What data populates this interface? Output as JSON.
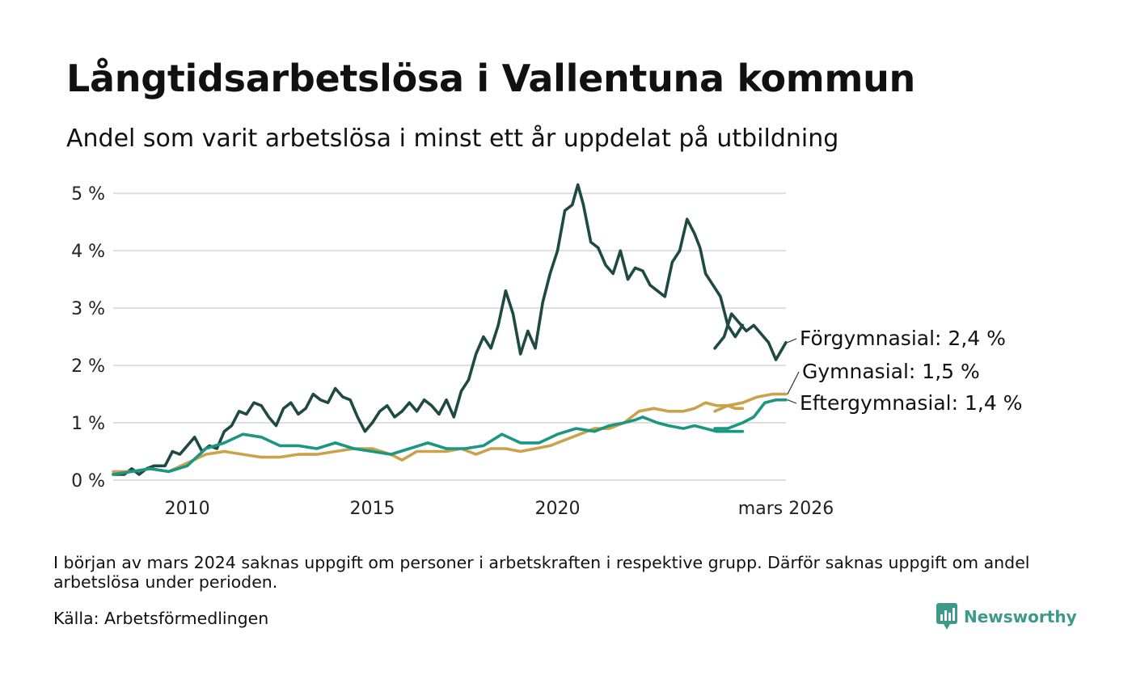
{
  "chart_data": {
    "type": "line",
    "title": "Långtidsarbetslösa i Vallentuna kommun",
    "subtitle": "Andel som varit arbetslösa i minst ett år uppdelat på utbildning",
    "xlabel": "",
    "ylabel": "",
    "ylim": [
      0,
      5.2
    ],
    "y_ticks": [
      0,
      1,
      2,
      3,
      4,
      5
    ],
    "y_tick_labels": [
      "0 %",
      "1 %",
      "2 %",
      "3 %",
      "4 %",
      "5 %"
    ],
    "x_range": [
      2008.0,
      2026.17
    ],
    "x_ticks": [
      2010,
      2015,
      2020,
      2026.17
    ],
    "x_tick_labels": [
      "2010",
      "2015",
      "2020",
      "mars 2026"
    ],
    "grid": true,
    "gap": [
      2023.7,
      2024.25
    ],
    "series": [
      {
        "name": "Förgymnasial",
        "end_label": "Förgymnasial: 2,4 %",
        "color": "#1f4a40",
        "points": [
          [
            2008.0,
            0.1
          ],
          [
            2008.3,
            0.1
          ],
          [
            2008.5,
            0.2
          ],
          [
            2008.7,
            0.1
          ],
          [
            2008.9,
            0.2
          ],
          [
            2009.1,
            0.25
          ],
          [
            2009.4,
            0.25
          ],
          [
            2009.6,
            0.5
          ],
          [
            2009.8,
            0.45
          ],
          [
            2010.0,
            0.6
          ],
          [
            2010.2,
            0.75
          ],
          [
            2010.4,
            0.5
          ],
          [
            2010.6,
            0.6
          ],
          [
            2010.8,
            0.55
          ],
          [
            2011.0,
            0.85
          ],
          [
            2011.2,
            0.95
          ],
          [
            2011.4,
            1.2
          ],
          [
            2011.6,
            1.15
          ],
          [
            2011.8,
            1.35
          ],
          [
            2012.0,
            1.3
          ],
          [
            2012.2,
            1.1
          ],
          [
            2012.4,
            0.95
          ],
          [
            2012.6,
            1.25
          ],
          [
            2012.8,
            1.35
          ],
          [
            2013.0,
            1.15
          ],
          [
            2013.2,
            1.25
          ],
          [
            2013.4,
            1.5
          ],
          [
            2013.6,
            1.4
          ],
          [
            2013.8,
            1.35
          ],
          [
            2014.0,
            1.6
          ],
          [
            2014.2,
            1.45
          ],
          [
            2014.4,
            1.4
          ],
          [
            2014.6,
            1.1
          ],
          [
            2014.8,
            0.85
          ],
          [
            2015.0,
            1.0
          ],
          [
            2015.2,
            1.2
          ],
          [
            2015.4,
            1.3
          ],
          [
            2015.6,
            1.1
          ],
          [
            2015.8,
            1.2
          ],
          [
            2016.0,
            1.35
          ],
          [
            2016.2,
            1.2
          ],
          [
            2016.4,
            1.4
          ],
          [
            2016.6,
            1.3
          ],
          [
            2016.8,
            1.15
          ],
          [
            2017.0,
            1.4
          ],
          [
            2017.2,
            1.1
          ],
          [
            2017.4,
            1.55
          ],
          [
            2017.6,
            1.75
          ],
          [
            2017.8,
            2.2
          ],
          [
            2018.0,
            2.5
          ],
          [
            2018.2,
            2.3
          ],
          [
            2018.4,
            2.7
          ],
          [
            2018.6,
            3.3
          ],
          [
            2018.8,
            2.9
          ],
          [
            2019.0,
            2.2
          ],
          [
            2019.2,
            2.6
          ],
          [
            2019.4,
            2.3
          ],
          [
            2019.6,
            3.1
          ],
          [
            2019.8,
            3.6
          ],
          [
            2020.0,
            4.0
          ],
          [
            2020.2,
            4.7
          ],
          [
            2020.4,
            4.8
          ],
          [
            2020.55,
            5.15
          ],
          [
            2020.7,
            4.8
          ],
          [
            2020.9,
            4.15
          ],
          [
            2021.1,
            4.05
          ],
          [
            2021.3,
            3.75
          ],
          [
            2021.5,
            3.6
          ],
          [
            2021.7,
            4.0
          ],
          [
            2021.9,
            3.5
          ],
          [
            2022.1,
            3.7
          ],
          [
            2022.3,
            3.65
          ],
          [
            2022.5,
            3.4
          ],
          [
            2022.7,
            3.3
          ],
          [
            2022.9,
            3.2
          ],
          [
            2023.1,
            3.8
          ],
          [
            2023.3,
            4.0
          ],
          [
            2023.5,
            4.55
          ],
          [
            2023.7,
            4.3
          ],
          [
            2023.85,
            4.05
          ],
          [
            2024.0,
            3.6
          ],
          [
            2024.2,
            3.4
          ],
          [
            2024.4,
            3.2
          ],
          [
            2024.6,
            2.7
          ],
          [
            2024.8,
            2.5
          ],
          [
            2025.0,
            2.7
          ],
          [
            2024.25,
            2.3
          ],
          [
            2024.5,
            2.5
          ],
          [
            2024.7,
            2.9
          ],
          [
            2024.9,
            2.75
          ],
          [
            2025.1,
            2.6
          ],
          [
            2025.3,
            2.7
          ],
          [
            2025.5,
            2.55
          ],
          [
            2025.7,
            2.4
          ],
          [
            2025.9,
            2.1
          ],
          [
            2026.17,
            2.4
          ]
        ]
      },
      {
        "name": "Gymnasial",
        "end_label": "Gymnasial: 1,5 %",
        "color": "#c9a24a",
        "points": [
          [
            2008.0,
            0.15
          ],
          [
            2008.5,
            0.15
          ],
          [
            2009.0,
            0.2
          ],
          [
            2009.5,
            0.15
          ],
          [
            2010.0,
            0.3
          ],
          [
            2010.5,
            0.45
          ],
          [
            2011.0,
            0.5
          ],
          [
            2011.5,
            0.45
          ],
          [
            2012.0,
            0.4
          ],
          [
            2012.5,
            0.4
          ],
          [
            2013.0,
            0.45
          ],
          [
            2013.5,
            0.45
          ],
          [
            2014.0,
            0.5
          ],
          [
            2014.5,
            0.55
          ],
          [
            2015.0,
            0.55
          ],
          [
            2015.5,
            0.45
          ],
          [
            2015.8,
            0.35
          ],
          [
            2016.2,
            0.5
          ],
          [
            2016.6,
            0.5
          ],
          [
            2017.0,
            0.5
          ],
          [
            2017.4,
            0.55
          ],
          [
            2017.8,
            0.45
          ],
          [
            2018.2,
            0.55
          ],
          [
            2018.6,
            0.55
          ],
          [
            2019.0,
            0.5
          ],
          [
            2019.4,
            0.55
          ],
          [
            2019.8,
            0.6
          ],
          [
            2020.2,
            0.7
          ],
          [
            2020.6,
            0.8
          ],
          [
            2021.0,
            0.9
          ],
          [
            2021.4,
            0.9
          ],
          [
            2021.8,
            1.0
          ],
          [
            2022.2,
            1.2
          ],
          [
            2022.6,
            1.25
          ],
          [
            2023.0,
            1.2
          ],
          [
            2023.4,
            1.2
          ],
          [
            2023.7,
            1.25
          ],
          [
            2024.0,
            1.35
          ],
          [
            2024.3,
            1.3
          ],
          [
            2024.6,
            1.3
          ],
          [
            2024.8,
            1.25
          ],
          [
            2025.0,
            1.25
          ],
          [
            2024.25,
            1.2
          ],
          [
            2024.6,
            1.3
          ],
          [
            2025.0,
            1.35
          ],
          [
            2025.4,
            1.45
          ],
          [
            2025.8,
            1.5
          ],
          [
            2026.17,
            1.5
          ]
        ]
      },
      {
        "name": "Eftergymnasial",
        "end_label": "Eftergymnasial: 1,4 %",
        "color": "#1a9683",
        "points": [
          [
            2008.0,
            0.1
          ],
          [
            2008.5,
            0.15
          ],
          [
            2009.0,
            0.2
          ],
          [
            2009.5,
            0.15
          ],
          [
            2010.0,
            0.25
          ],
          [
            2010.5,
            0.55
          ],
          [
            2011.0,
            0.65
          ],
          [
            2011.5,
            0.8
          ],
          [
            2012.0,
            0.75
          ],
          [
            2012.5,
            0.6
          ],
          [
            2013.0,
            0.6
          ],
          [
            2013.5,
            0.55
          ],
          [
            2014.0,
            0.65
          ],
          [
            2014.5,
            0.55
          ],
          [
            2015.0,
            0.5
          ],
          [
            2015.5,
            0.45
          ],
          [
            2016.0,
            0.55
          ],
          [
            2016.5,
            0.65
          ],
          [
            2017.0,
            0.55
          ],
          [
            2017.5,
            0.55
          ],
          [
            2018.0,
            0.6
          ],
          [
            2018.5,
            0.8
          ],
          [
            2019.0,
            0.65
          ],
          [
            2019.5,
            0.65
          ],
          [
            2020.0,
            0.8
          ],
          [
            2020.5,
            0.9
          ],
          [
            2021.0,
            0.85
          ],
          [
            2021.4,
            0.95
          ],
          [
            2021.8,
            1.0
          ],
          [
            2022.1,
            1.05
          ],
          [
            2022.3,
            1.1
          ],
          [
            2022.7,
            1.0
          ],
          [
            2023.0,
            0.95
          ],
          [
            2023.4,
            0.9
          ],
          [
            2023.7,
            0.95
          ],
          [
            2024.0,
            0.9
          ],
          [
            2024.3,
            0.85
          ],
          [
            2024.6,
            0.85
          ],
          [
            2024.8,
            0.85
          ],
          [
            2025.0,
            0.85
          ],
          [
            2024.25,
            0.9
          ],
          [
            2024.6,
            0.9
          ],
          [
            2025.0,
            1.0
          ],
          [
            2025.3,
            1.1
          ],
          [
            2025.6,
            1.35
          ],
          [
            2025.9,
            1.4
          ],
          [
            2026.17,
            1.4
          ]
        ]
      }
    ]
  },
  "footnote": "I början av mars 2024 saknas uppgift om personer i arbetskraften i respektive grupp. Därför saknas uppgift om andel arbetslösa under perioden.",
  "source": "Källa: Arbetsförmedlingen",
  "brand": {
    "name": "Newsworthy",
    "icon": "newsworthy-logo-icon",
    "color": "#3d9a8b"
  }
}
